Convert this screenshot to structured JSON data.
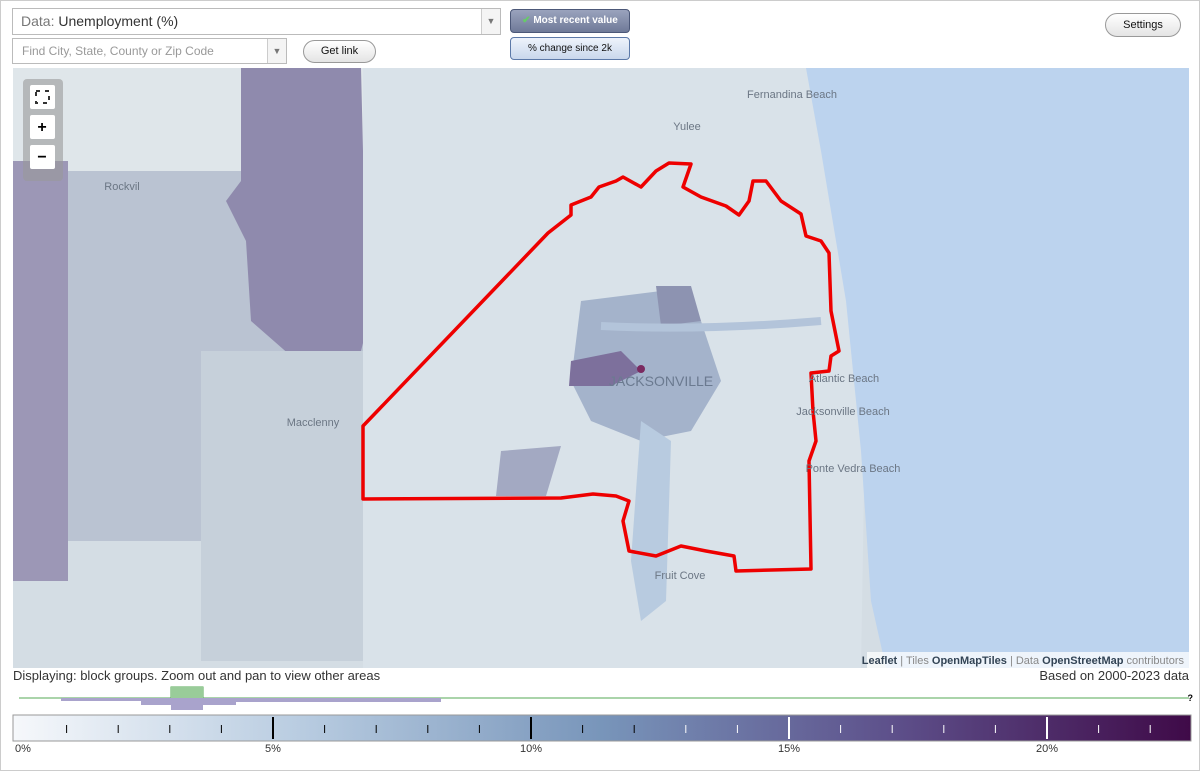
{
  "controls": {
    "data_label": "Data:",
    "data_value": "Unemployment (%)",
    "search_placeholder": "Find City, State, County or Zip Code",
    "get_link": "Get link",
    "most_recent": "Most recent value",
    "pct_change": "% change since 2k",
    "settings": "Settings"
  },
  "map": {
    "places": [
      "Fernandina Beach",
      "Yulee",
      "Rockvil",
      "Macclenny",
      "JACKSONVILLE",
      "Atlantic Beach",
      "Jacksonville Beach",
      "Ponte Vedra Beach",
      "Fruit Cove"
    ],
    "attribution": {
      "leaflet": "Leaflet",
      "tiles": "| Tiles",
      "openmaptiles": "OpenMapTiles",
      "data": "| Data",
      "osm": "OpenStreetMap",
      "contributors": "contributors"
    }
  },
  "status": {
    "displaying": "Displaying: block groups. Zoom out and pan to view other areas",
    "based_on": "Based on 2000-2023 data",
    "help": "?"
  },
  "legend": {
    "labels": [
      "0%",
      "5%",
      "10%",
      "15%",
      "20%"
    ]
  }
}
